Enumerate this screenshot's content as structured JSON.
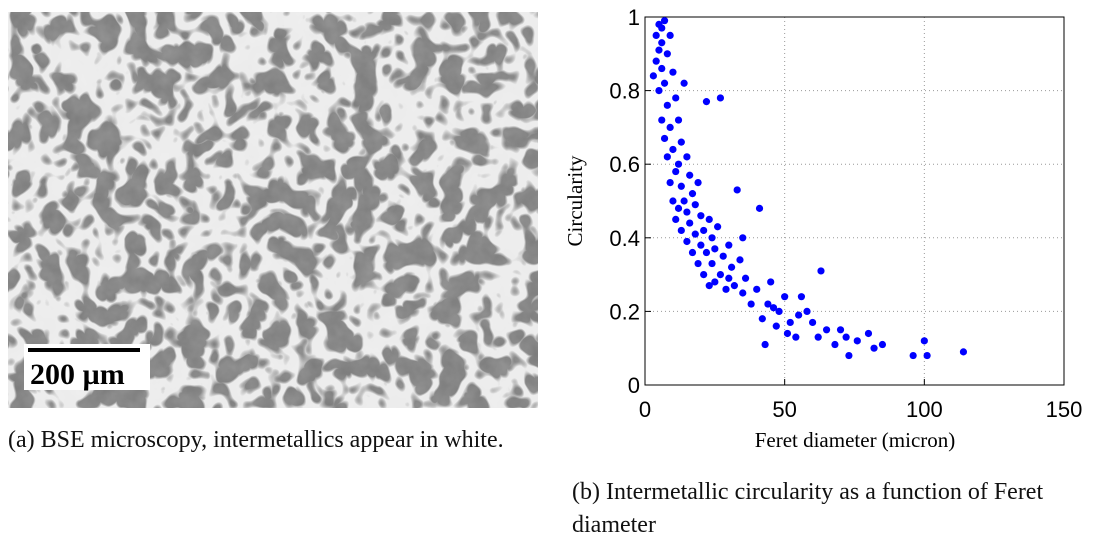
{
  "figure_a": {
    "scale_bar": "200 µm",
    "caption": "(a) BSE microscopy, intermetallics appear in white."
  },
  "chart_data": {
    "type": "scatter",
    "caption": "(b) Intermetallic circularity as a function of Feret diameter",
    "xlabel": "Feret diameter (micron)",
    "ylabel": "Circularity",
    "color": "#0000ff",
    "grid": true,
    "xlim": [
      0,
      150
    ],
    "ylim": [
      0,
      1
    ],
    "xticks": [
      0,
      50,
      100,
      150
    ],
    "yticks": [
      0,
      0.2,
      0.4,
      0.6,
      0.8,
      1
    ],
    "x": [
      3,
      4,
      4,
      5,
      5,
      5,
      6,
      6,
      6,
      6,
      7,
      7,
      7,
      8,
      8,
      8,
      9,
      9,
      9,
      10,
      10,
      10,
      11,
      11,
      11,
      12,
      12,
      12,
      13,
      13,
      13,
      14,
      14,
      15,
      15,
      15,
      16,
      16,
      17,
      17,
      18,
      18,
      19,
      19,
      20,
      20,
      21,
      21,
      22,
      22,
      23,
      23,
      24,
      24,
      25,
      25,
      26,
      27,
      27,
      28,
      29,
      30,
      30,
      31,
      32,
      33,
      34,
      35,
      35,
      36,
      38,
      40,
      41,
      42,
      43,
      44,
      45,
      46,
      47,
      48,
      50,
      51,
      52,
      54,
      55,
      56,
      58,
      60,
      62,
      63,
      65,
      68,
      70,
      72,
      73,
      76,
      80,
      82,
      85,
      96,
      100,
      101,
      114
    ],
    "values": [
      0.84,
      0.95,
      0.88,
      0.98,
      0.91,
      0.8,
      0.97,
      0.86,
      0.72,
      0.93,
      0.99,
      0.82,
      0.67,
      0.9,
      0.76,
      0.62,
      0.95,
      0.7,
      0.55,
      0.85,
      0.64,
      0.5,
      0.78,
      0.58,
      0.45,
      0.72,
      0.6,
      0.48,
      0.66,
      0.54,
      0.42,
      0.82,
      0.5,
      0.62,
      0.47,
      0.39,
      0.57,
      0.44,
      0.52,
      0.36,
      0.49,
      0.41,
      0.55,
      0.33,
      0.46,
      0.38,
      0.42,
      0.3,
      0.77,
      0.36,
      0.45,
      0.27,
      0.4,
      0.33,
      0.37,
      0.28,
      0.43,
      0.78,
      0.3,
      0.35,
      0.26,
      0.38,
      0.29,
      0.32,
      0.27,
      0.53,
      0.34,
      0.4,
      0.25,
      0.29,
      0.22,
      0.26,
      0.48,
      0.18,
      0.11,
      0.22,
      0.28,
      0.21,
      0.16,
      0.2,
      0.24,
      0.14,
      0.17,
      0.13,
      0.19,
      0.24,
      0.2,
      0.17,
      0.13,
      0.31,
      0.15,
      0.11,
      0.15,
      0.13,
      0.08,
      0.12,
      0.14,
      0.1,
      0.11,
      0.08,
      0.12,
      0.08,
      0.09
    ]
  }
}
